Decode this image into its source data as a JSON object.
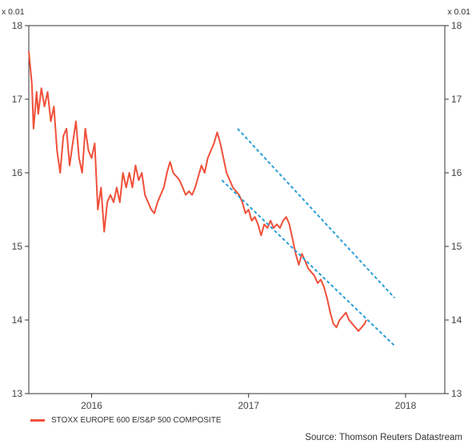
{
  "chart_data": {
    "type": "line",
    "title": "",
    "unit_left": "x 0.01",
    "unit_right": "x 0.01",
    "ylim": [
      13,
      18
    ],
    "yticks": [
      "13",
      "14",
      "15",
      "16",
      "17",
      "18"
    ],
    "xlim": [
      2015.6,
      2018.25
    ],
    "xticks": [
      "2016",
      "2017",
      "2018"
    ],
    "colors": {
      "series": "#f0503a",
      "channel": "#2a9fd6"
    },
    "series": [
      {
        "name": "STOXX EUROPE 600 E/S&P 500 COMPOSITE",
        "x": [
          2015.6,
          2015.62,
          2015.63,
          2015.65,
          2015.66,
          2015.68,
          2015.7,
          2015.72,
          2015.74,
          2015.76,
          2015.78,
          2015.8,
          2015.82,
          2015.84,
          2015.86,
          2015.88,
          2015.9,
          2015.92,
          2015.94,
          2015.96,
          2015.98,
          2016.0,
          2016.02,
          2016.04,
          2016.06,
          2016.08,
          2016.1,
          2016.12,
          2016.14,
          2016.16,
          2016.18,
          2016.2,
          2016.22,
          2016.24,
          2016.26,
          2016.28,
          2016.3,
          2016.32,
          2016.34,
          2016.36,
          2016.38,
          2016.4,
          2016.42,
          2016.44,
          2016.46,
          2016.48,
          2016.5,
          2016.52,
          2016.54,
          2016.56,
          2016.58,
          2016.6,
          2016.62,
          2016.64,
          2016.66,
          2016.68,
          2016.7,
          2016.72,
          2016.74,
          2016.76,
          2016.78,
          2016.8,
          2016.82,
          2016.84,
          2016.86,
          2016.88,
          2016.9,
          2016.92,
          2016.94,
          2016.96,
          2016.98,
          2017.0,
          2017.02,
          2017.04,
          2017.06,
          2017.08,
          2017.1,
          2017.12,
          2017.14,
          2017.16,
          2017.18,
          2017.2,
          2017.22,
          2017.24,
          2017.26,
          2017.28,
          2017.3,
          2017.32,
          2017.34,
          2017.36,
          2017.38,
          2017.4,
          2017.42,
          2017.44,
          2017.46,
          2017.48,
          2017.5,
          2017.52,
          2017.54,
          2017.56,
          2017.58,
          2017.6,
          2017.62,
          2017.64,
          2017.66,
          2017.68,
          2017.7,
          2017.72,
          2017.74,
          2017.75
        ],
        "y": [
          17.65,
          17.2,
          16.6,
          17.1,
          16.8,
          17.15,
          16.9,
          17.1,
          16.7,
          16.9,
          16.3,
          16.0,
          16.5,
          16.6,
          16.1,
          16.4,
          16.7,
          16.2,
          16.0,
          16.6,
          16.3,
          16.2,
          16.4,
          15.5,
          15.8,
          15.2,
          15.6,
          15.7,
          15.6,
          15.8,
          15.6,
          16.0,
          15.8,
          16.0,
          15.8,
          16.1,
          15.9,
          16.0,
          15.7,
          15.6,
          15.5,
          15.45,
          15.6,
          15.7,
          15.8,
          16.0,
          16.15,
          16.0,
          15.95,
          15.9,
          15.8,
          15.7,
          15.75,
          15.7,
          15.8,
          15.95,
          16.1,
          16.0,
          16.2,
          16.3,
          16.4,
          16.55,
          16.4,
          16.2,
          16.0,
          15.9,
          15.8,
          15.75,
          15.7,
          15.6,
          15.45,
          15.5,
          15.35,
          15.4,
          15.3,
          15.15,
          15.3,
          15.25,
          15.35,
          15.25,
          15.3,
          15.25,
          15.35,
          15.4,
          15.3,
          15.1,
          14.9,
          14.75,
          14.9,
          14.8,
          14.7,
          14.65,
          14.6,
          14.5,
          14.55,
          14.45,
          14.3,
          14.1,
          13.95,
          13.9,
          14.0,
          14.05,
          14.1,
          14.0,
          13.95,
          13.9,
          13.85,
          13.9,
          13.95,
          14.0
        ]
      }
    ],
    "legend": {
      "label": "STOXX EUROPE 600 E/S&P 500 COMPOSITE",
      "position": "bottom-left"
    },
    "source": "Source: Thomson Reuters Datastream",
    "annotations": [
      {
        "type": "trend-channel-upper",
        "x": [
          2016.93,
          2017.93
        ],
        "y": [
          16.6,
          14.3
        ]
      },
      {
        "type": "trend-channel-lower",
        "x": [
          2016.83,
          2017.93
        ],
        "y": [
          15.9,
          13.65
        ]
      }
    ]
  }
}
